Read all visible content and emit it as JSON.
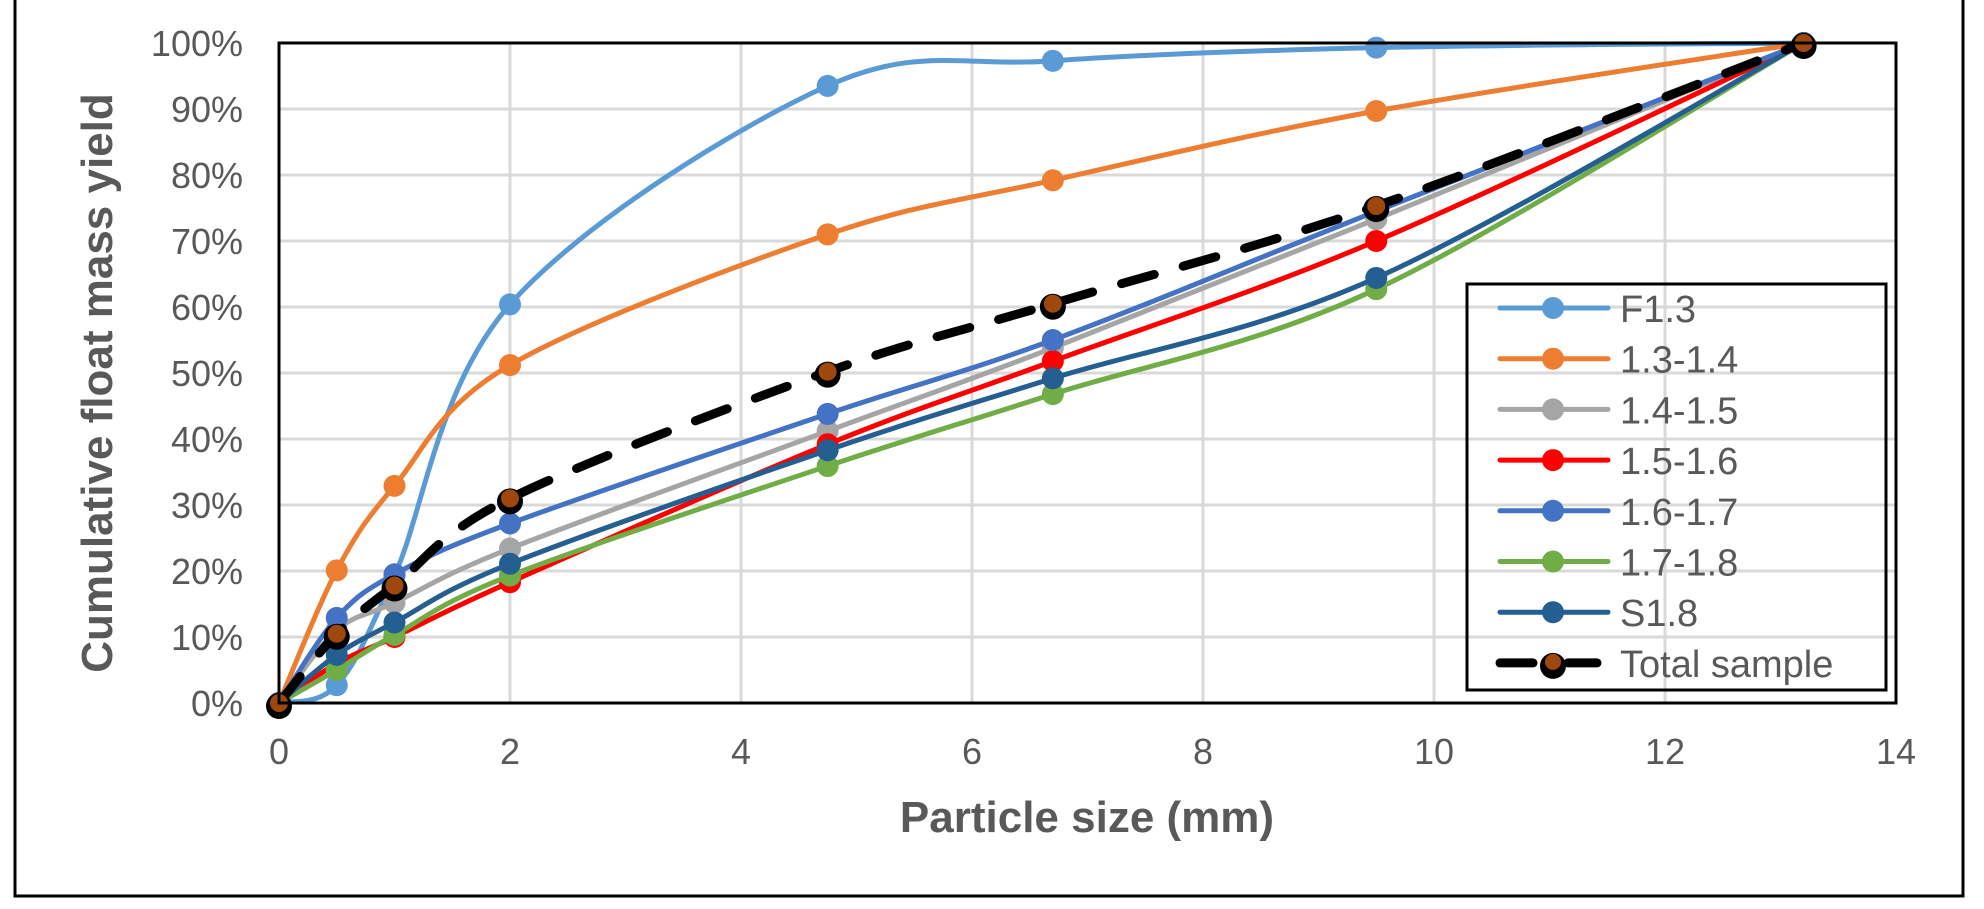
{
  "chart_data": {
    "type": "line",
    "title": "",
    "xlabel": "Particle size (mm)",
    "ylabel": "Cumulative float mass yield",
    "xlim": [
      0,
      14
    ],
    "ylim": [
      0,
      100
    ],
    "x_ticks": [
      0,
      2,
      4,
      6,
      8,
      10,
      12,
      14
    ],
    "x_tick_labels": [
      "0",
      "2",
      "4",
      "6",
      "8",
      "10",
      "12",
      "14"
    ],
    "y_ticks": [
      0,
      10,
      20,
      30,
      40,
      50,
      60,
      70,
      80,
      90,
      100
    ],
    "y_tick_labels": [
      "0%",
      "10%",
      "20%",
      "30%",
      "40%",
      "50%",
      "60%",
      "70%",
      "80%",
      "90%",
      "100%"
    ],
    "grid": true,
    "smoothed": true,
    "legend_position": "bottom-right (inside plot)",
    "x": [
      0,
      0.5,
      1,
      2,
      4.75,
      6.7,
      9.5,
      13.2
    ],
    "series": [
      {
        "name": "F1.3",
        "color": "#5B9BD5",
        "dashed": false,
        "values": [
          0,
          2.7,
          19.3,
          60.4,
          93.5,
          97.3,
          99.3,
          100
        ]
      },
      {
        "name": "1.3-1.4",
        "color": "#ED7D31",
        "dashed": false,
        "values": [
          0,
          20.1,
          32.9,
          51.2,
          71.0,
          79.2,
          89.7,
          100
        ]
      },
      {
        "name": "1.4-1.5",
        "color": "#A5A5A5",
        "dashed": false,
        "values": [
          0,
          11.0,
          15.2,
          23.4,
          41.2,
          53.8,
          73.3,
          100
        ]
      },
      {
        "name": "1.5-1.6",
        "color": "#FF0000",
        "dashed": false,
        "values": [
          0,
          6.0,
          10.0,
          18.3,
          39.2,
          51.8,
          70.0,
          100
        ]
      },
      {
        "name": "1.6-1.7",
        "color": "#4472C4",
        "dashed": false,
        "values": [
          0,
          12.9,
          19.5,
          27.2,
          43.8,
          55.0,
          74.5,
          100
        ]
      },
      {
        "name": "1.7-1.8",
        "color": "#70AD47",
        "dashed": false,
        "values": [
          0,
          5.0,
          10.3,
          19.3,
          35.9,
          46.8,
          62.7,
          100
        ]
      },
      {
        "name": "S1.8",
        "color": "#255E91",
        "dashed": false,
        "values": [
          0,
          7.3,
          12.2,
          21.1,
          38.3,
          49.2,
          64.4,
          100
        ]
      },
      {
        "name": "Total sample",
        "color": "#000000",
        "marker_color": "#9E480E",
        "dashed": true,
        "values": [
          0,
          10.5,
          17.8,
          31.0,
          50.2,
          60.5,
          75.3,
          100
        ]
      }
    ]
  }
}
